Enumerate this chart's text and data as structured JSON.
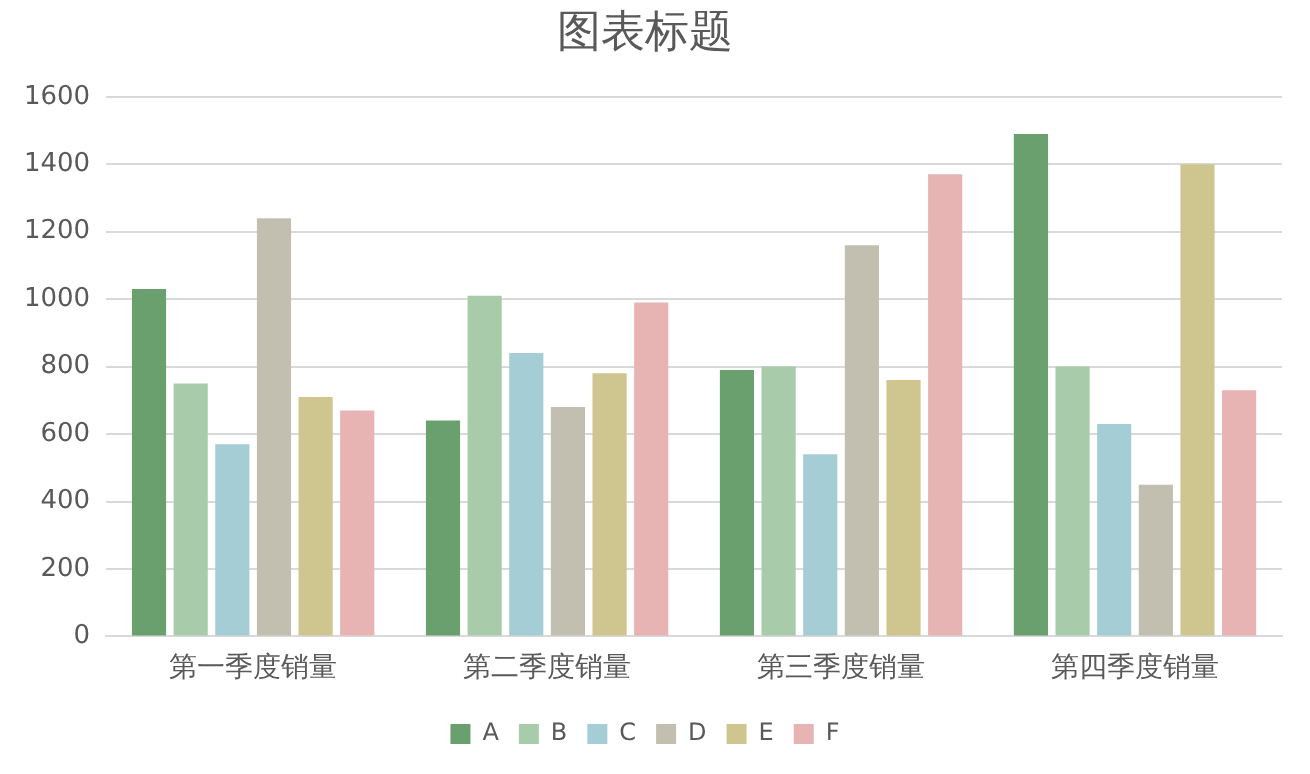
{
  "chart_data": {
    "type": "bar",
    "title": "图表标题",
    "categories": [
      "第一季度销量",
      "第二季度销量",
      "第三季度销量",
      "第四季度销量"
    ],
    "series": [
      {
        "name": "A",
        "color": "#6a9f6e",
        "values": [
          1030,
          640,
          790,
          1490
        ]
      },
      {
        "name": "B",
        "color": "#a8ccaa",
        "values": [
          750,
          1010,
          800,
          800
        ]
      },
      {
        "name": "C",
        "color": "#a5cdd6",
        "values": [
          570,
          840,
          540,
          630
        ]
      },
      {
        "name": "D",
        "color": "#c2bfb0",
        "values": [
          1240,
          680,
          1160,
          450
        ]
      },
      {
        "name": "E",
        "color": "#cfc58f",
        "values": [
          710,
          780,
          760,
          1400
        ]
      },
      {
        "name": "F",
        "color": "#e7b3b3",
        "values": [
          670,
          990,
          1370,
          730
        ]
      }
    ],
    "ylim": [
      0,
      1600
    ],
    "yticks": [
      0,
      200,
      400,
      600,
      800,
      1000,
      1200,
      1400,
      1600
    ],
    "grid": "y",
    "legend": "bottom"
  }
}
